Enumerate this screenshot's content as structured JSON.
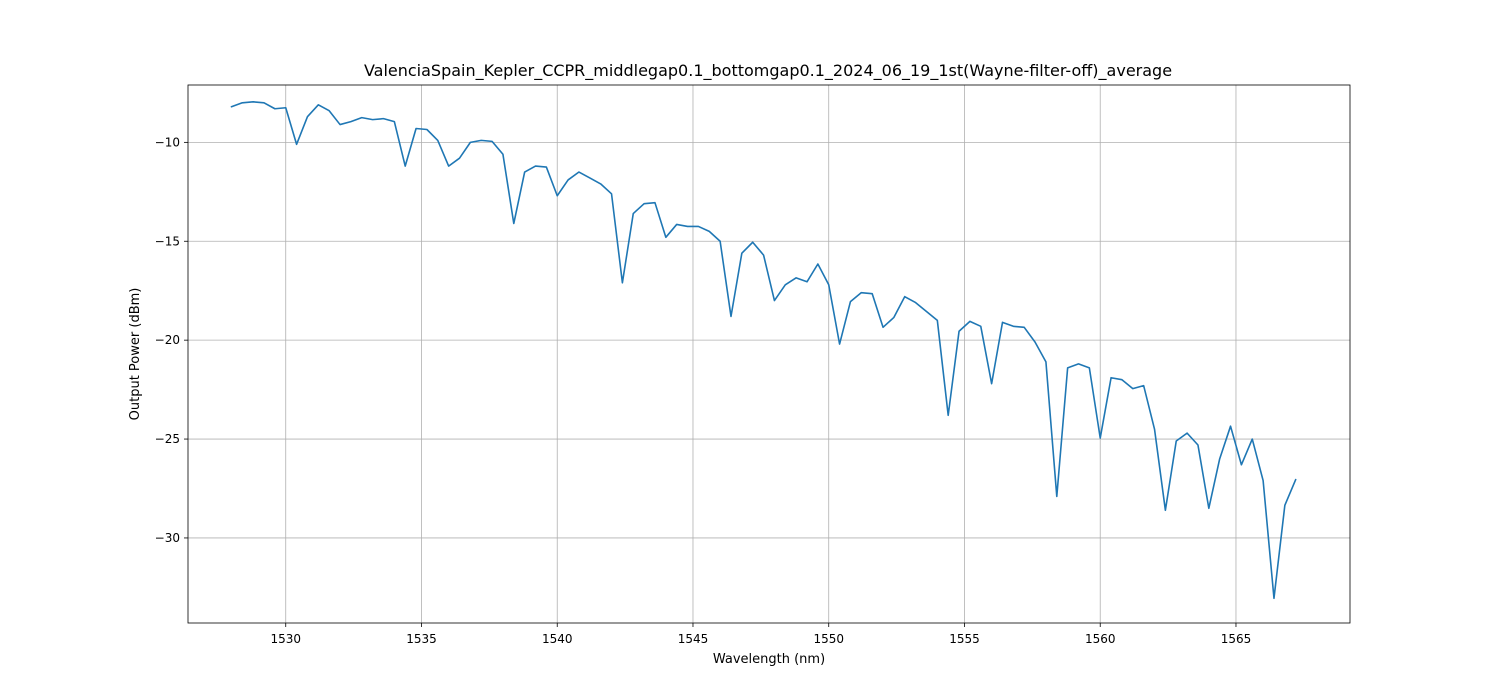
{
  "chart_data": {
    "type": "line",
    "title": "ValenciaSpain_Kepler_CCPR_middlegap0.1_bottomgap0.1_2024_06_19_1st(Wayne-filter-off)_average",
    "xlabel": "Wavelength (nm)",
    "ylabel": "Output Power (dBm)",
    "xlim": [
      1526.4,
      1569.2
    ],
    "ylim": [
      -34.3,
      -7.1
    ],
    "xticks": [
      1530,
      1535,
      1540,
      1545,
      1550,
      1555,
      1560,
      1565
    ],
    "xtick_labels": [
      "1530",
      "1535",
      "1540",
      "1545",
      "1550",
      "1555",
      "1560",
      "1565"
    ],
    "yticks": [
      -10,
      -15,
      -20,
      -25,
      -30
    ],
    "ytick_labels": [
      "−10",
      "−15",
      "−20",
      "−25",
      "−30"
    ],
    "grid": true,
    "series": [
      {
        "color": "#1f77b4",
        "x": [
          1528.0,
          1528.4,
          1528.8,
          1529.2,
          1529.6,
          1530.0,
          1530.4,
          1530.8,
          1531.2,
          1531.6,
          1532.0,
          1532.4,
          1532.8,
          1533.2,
          1533.6,
          1534.0,
          1534.4,
          1534.8,
          1535.2,
          1535.6,
          1536.0,
          1536.4,
          1536.8,
          1537.2,
          1537.6,
          1538.0,
          1538.4,
          1538.8,
          1539.2,
          1539.6,
          1540.0,
          1540.4,
          1540.8,
          1541.2,
          1541.6,
          1542.0,
          1542.4,
          1542.8,
          1543.2,
          1543.6,
          1544.0,
          1544.4,
          1544.8,
          1545.2,
          1545.6,
          1546.0,
          1546.4,
          1546.8,
          1547.2,
          1547.6,
          1548.0,
          1548.4,
          1548.8,
          1549.2,
          1549.6,
          1550.0,
          1550.4,
          1550.8,
          1551.2,
          1551.6,
          1552.0,
          1552.4,
          1552.8,
          1553.2,
          1553.6,
          1554.0,
          1554.4,
          1554.8,
          1555.2,
          1555.6,
          1556.0,
          1556.4,
          1556.8,
          1557.2,
          1557.6,
          1558.0,
          1558.4,
          1558.8,
          1559.2,
          1559.6,
          1560.0,
          1560.4,
          1560.8,
          1561.2,
          1561.6,
          1562.0,
          1562.4,
          1562.8,
          1563.2,
          1563.6,
          1564.0,
          1564.4,
          1564.8,
          1565.2,
          1565.6,
          1566.0,
          1566.4,
          1566.8,
          1567.2
        ],
        "y": [
          -8.2,
          -8.0,
          -7.95,
          -8.0,
          -8.3,
          -8.25,
          -10.1,
          -8.7,
          -8.1,
          -8.4,
          -9.1,
          -8.95,
          -8.75,
          -8.85,
          -8.8,
          -8.95,
          -11.2,
          -9.3,
          -9.35,
          -9.9,
          -11.2,
          -10.8,
          -10.0,
          -9.9,
          -9.95,
          -10.6,
          -14.1,
          -11.5,
          -11.2,
          -11.25,
          -12.7,
          -11.9,
          -11.5,
          -11.8,
          -12.1,
          -12.6,
          -17.1,
          -13.6,
          -13.1,
          -13.05,
          -14.8,
          -14.15,
          -14.25,
          -14.25,
          -14.5,
          -15.0,
          -18.8,
          -15.6,
          -15.05,
          -15.7,
          -18.0,
          -17.2,
          -16.85,
          -17.05,
          -16.15,
          -17.2,
          -20.2,
          -18.05,
          -17.6,
          -17.65,
          -19.35,
          -18.85,
          -17.8,
          -18.1,
          -18.55,
          -19.0,
          -23.8,
          -19.55,
          -19.05,
          -19.3,
          -22.2,
          -19.1,
          -19.3,
          -19.35,
          -20.1,
          -21.1,
          -27.9,
          -21.4,
          -21.2,
          -21.4,
          -24.95,
          -21.9,
          -22.0,
          -22.45,
          -22.3,
          -24.5,
          -28.6,
          -25.1,
          -24.7,
          -25.3,
          -28.5,
          -26.0,
          -24.35,
          -26.3,
          -25.0,
          -27.1,
          -33.05,
          -28.35,
          -27.05
        ]
      }
    ]
  }
}
